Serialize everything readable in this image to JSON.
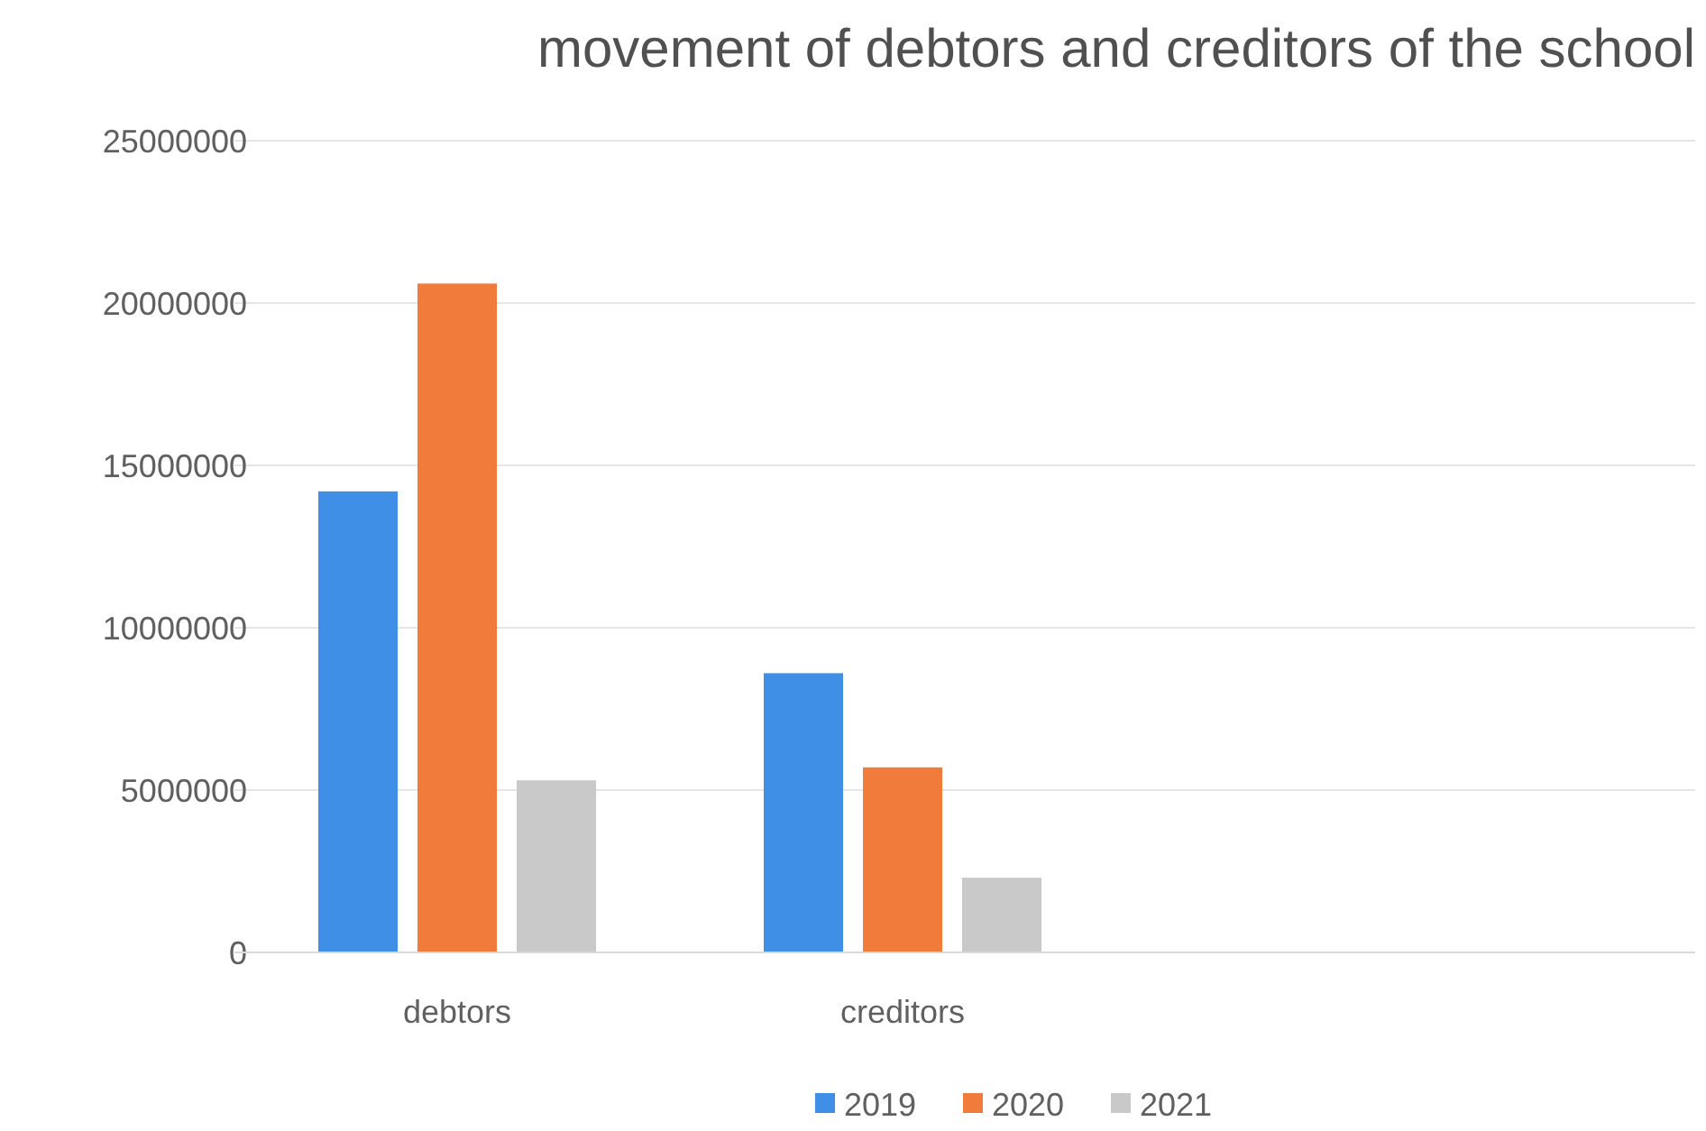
{
  "chart_data": {
    "type": "bar",
    "title": "movement of debtors and creditors of the school",
    "categories": [
      "debtors",
      "creditors"
    ],
    "series": [
      {
        "name": "2019",
        "color": "#3f8fe6",
        "values": [
          14200000,
          8600000
        ]
      },
      {
        "name": "2020",
        "color": "#f07b3a",
        "values": [
          20600000,
          5700000
        ]
      },
      {
        "name": "2021",
        "color": "#c9c9c9",
        "values": [
          5300000,
          2300000
        ]
      }
    ],
    "ylim": [
      0,
      25000000
    ],
    "yticks": [
      0,
      5000000,
      10000000,
      15000000,
      20000000,
      25000000
    ],
    "grid": "y",
    "legend": "bottom"
  }
}
